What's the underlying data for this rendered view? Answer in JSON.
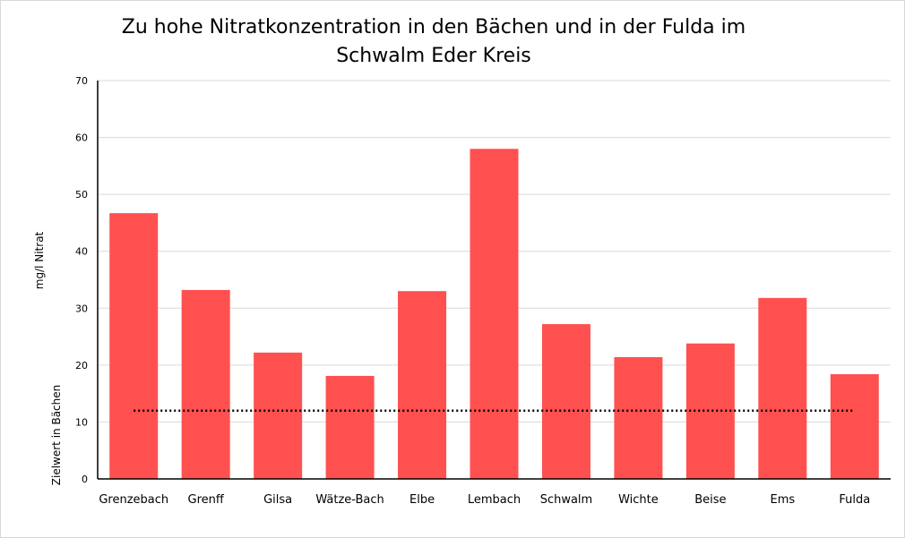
{
  "chart_data": {
    "type": "bar",
    "title_lines": [
      "Zu hohe Nitratkonzentration in den Bächen und in der Fulda im",
      "Schwalm Eder Kreis"
    ],
    "ylabel": "mg/l Nitrat",
    "reference_label": "Zielwert in Bächen",
    "categories": [
      "Grenzebach",
      "Grenff",
      "Gilsa",
      "Wätze-Bach",
      "Elbe",
      "Lembach",
      "Schwalm",
      "Wichte",
      "Beise",
      "Ems",
      "Fulda"
    ],
    "series": [
      {
        "type": "bar",
        "values": [
          46.7,
          33.2,
          22.2,
          18.1,
          33.0,
          58.0,
          27.2,
          21.4,
          23.8,
          31.8,
          18.4
        ],
        "color": "#ff5050"
      },
      {
        "type": "line",
        "style": "dotted",
        "values": [
          12,
          12,
          12,
          12,
          12,
          12,
          12,
          12,
          12,
          12,
          12
        ],
        "color": "#000000"
      }
    ],
    "ylim": [
      0,
      70
    ],
    "yticks": [
      0,
      10,
      20,
      30,
      40,
      50,
      60,
      70
    ],
    "grid": true,
    "legend": "none"
  }
}
